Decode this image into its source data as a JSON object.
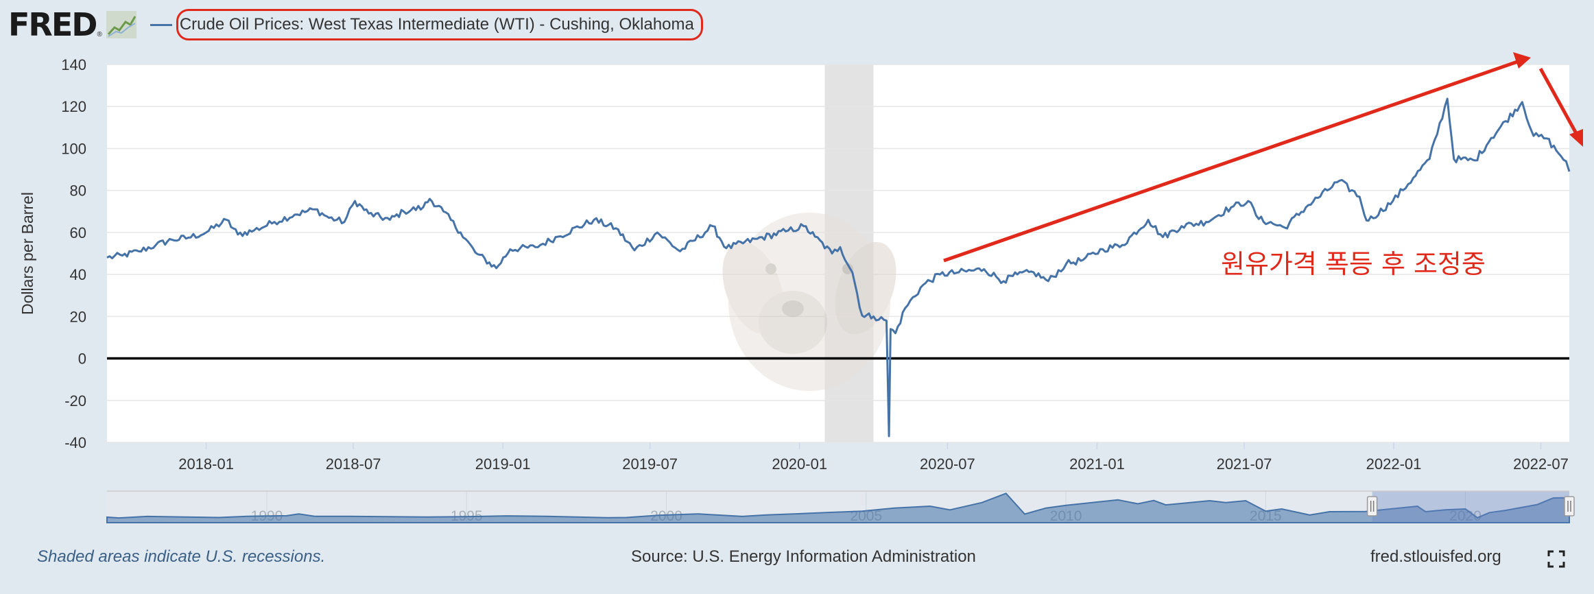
{
  "header": {
    "logo_text": "FRED",
    "logo_reg": "®",
    "series_title": "Crude Oil Prices: West Texas Intermediate (WTI) - Cushing, Oklahoma"
  },
  "chart_data": {
    "type": "line",
    "title": "Crude Oil Prices: West Texas Intermediate (WTI) - Cushing, Oklahoma",
    "xlabel": "",
    "ylabel": "Dollars per Barrel",
    "ylim": [
      -40,
      140
    ],
    "yticks": [
      140,
      120,
      100,
      80,
      60,
      40,
      20,
      0,
      -20,
      -40
    ],
    "xlim": [
      "2017-09-01",
      "2022-08-05"
    ],
    "xtick_labels": [
      "2018-01",
      "2018-07",
      "2019-01",
      "2019-07",
      "2020-01",
      "2020-07",
      "2021-01",
      "2021-07",
      "2022-01",
      "2022-07"
    ],
    "grid": true,
    "recession_shading": [
      [
        "2020-02",
        "2020-04"
      ]
    ],
    "series": [
      {
        "name": "Crude Oil Prices: West Texas Intermediate (WTI) - Cushing, Oklahoma",
        "color": "#4572a7",
        "points": [
          [
            "2017-09-01",
            48
          ],
          [
            "2017-09-20",
            49
          ],
          [
            "2017-10-10",
            51
          ],
          [
            "2017-10-31",
            54
          ],
          [
            "2017-11-20",
            56.5
          ],
          [
            "2017-12-10",
            57.5
          ],
          [
            "2018-01-01",
            60
          ],
          [
            "2018-01-26",
            66
          ],
          [
            "2018-02-09",
            59
          ],
          [
            "2018-03-01",
            61
          ],
          [
            "2018-03-26",
            65
          ],
          [
            "2018-04-20",
            68.5
          ],
          [
            "2018-05-15",
            71
          ],
          [
            "2018-06-01",
            67
          ],
          [
            "2018-06-20",
            65
          ],
          [
            "2018-07-03",
            75
          ],
          [
            "2018-07-20",
            69
          ],
          [
            "2018-08-15",
            66
          ],
          [
            "2018-09-01",
            70
          ],
          [
            "2018-09-25",
            72
          ],
          [
            "2018-10-03",
            76
          ],
          [
            "2018-10-20",
            70
          ],
          [
            "2018-11-10",
            60
          ],
          [
            "2018-11-28",
            50.5
          ],
          [
            "2018-12-24",
            43
          ],
          [
            "2019-01-10",
            52
          ],
          [
            "2019-02-10",
            53
          ],
          [
            "2019-03-10",
            58
          ],
          [
            "2019-04-23",
            66
          ],
          [
            "2019-05-20",
            62
          ],
          [
            "2019-06-12",
            51.5
          ],
          [
            "2019-07-10",
            60
          ],
          [
            "2019-08-07",
            51
          ],
          [
            "2019-09-16",
            63
          ],
          [
            "2019-10-03",
            52.5
          ],
          [
            "2019-11-10",
            57
          ],
          [
            "2019-12-15",
            60.5
          ],
          [
            "2020-01-06",
            63
          ],
          [
            "2020-01-20",
            58
          ],
          [
            "2020-02-10",
            50
          ],
          [
            "2020-02-20",
            53
          ],
          [
            "2020-03-06",
            41
          ],
          [
            "2020-03-18",
            20.4
          ],
          [
            "2020-04-01",
            20
          ],
          [
            "2020-04-17",
            18
          ],
          [
            "2020-04-20",
            -37
          ],
          [
            "2020-04-22",
            14
          ],
          [
            "2020-04-28",
            12
          ],
          [
            "2020-05-10",
            24
          ],
          [
            "2020-06-01",
            35
          ],
          [
            "2020-06-22",
            40
          ],
          [
            "2020-07-15",
            41
          ],
          [
            "2020-08-15",
            42.5
          ],
          [
            "2020-09-08",
            36.8
          ],
          [
            "2020-09-25",
            40
          ],
          [
            "2020-10-15",
            41
          ],
          [
            "2020-11-02",
            36.8
          ],
          [
            "2020-11-24",
            45
          ],
          [
            "2020-12-15",
            47
          ],
          [
            "2021-01-08",
            52
          ],
          [
            "2021-02-01",
            54
          ],
          [
            "2021-03-05",
            66
          ],
          [
            "2021-03-23",
            57.8
          ],
          [
            "2021-04-15",
            63
          ],
          [
            "2021-05-15",
            65
          ],
          [
            "2021-06-15",
            72
          ],
          [
            "2021-07-06",
            75
          ],
          [
            "2021-07-19",
            66.4
          ],
          [
            "2021-08-20",
            62.3
          ],
          [
            "2021-09-15",
            72
          ],
          [
            "2021-10-26",
            84.6
          ],
          [
            "2021-11-20",
            77
          ],
          [
            "2021-11-26",
            68.2
          ],
          [
            "2021-12-01",
            65.6
          ],
          [
            "2021-12-31",
            75
          ],
          [
            "2022-01-25",
            86
          ],
          [
            "2022-02-14",
            95
          ],
          [
            "2022-03-08",
            123.7
          ],
          [
            "2022-03-16",
            95
          ],
          [
            "2022-04-11",
            94.3
          ],
          [
            "2022-05-01",
            105
          ],
          [
            "2022-06-08",
            122.1
          ],
          [
            "2022-06-22",
            106
          ],
          [
            "2022-07-08",
            104.8
          ],
          [
            "2022-07-20",
            99
          ],
          [
            "2022-08-01",
            93.9
          ],
          [
            "2022-08-05",
            89
          ]
        ]
      }
    ],
    "navigator": {
      "tick_labels": [
        "1990",
        "1995",
        "2000",
        "2005",
        "2010",
        "2015",
        "2020"
      ],
      "range_years": [
        1986,
        2022.6
      ],
      "selected_range": [
        "2017-09",
        "2022-08"
      ],
      "series_years": [
        [
          1986,
          15
        ],
        [
          1986.3,
          11
        ],
        [
          1987,
          19
        ],
        [
          1988.8,
          13
        ],
        [
          1989.5,
          20
        ],
        [
          1990.5,
          23
        ],
        [
          1990.8,
          33
        ],
        [
          1991.2,
          20
        ],
        [
          1992,
          20
        ],
        [
          1993,
          18
        ],
        [
          1994,
          16
        ],
        [
          1995,
          18
        ],
        [
          1996,
          22
        ],
        [
          1997,
          20
        ],
        [
          1998.5,
          12
        ],
        [
          1999,
          13
        ],
        [
          1999.8,
          25
        ],
        [
          2000.8,
          33
        ],
        [
          2001.9,
          19
        ],
        [
          2002.5,
          27
        ],
        [
          2003.2,
          33
        ],
        [
          2004,
          40
        ],
        [
          2004.9,
          48
        ],
        [
          2005.7,
          65
        ],
        [
          2006.6,
          75
        ],
        [
          2007.1,
          55
        ],
        [
          2007.9,
          95
        ],
        [
          2008.5,
          145
        ],
        [
          2008.97,
          32
        ],
        [
          2009.5,
          65
        ],
        [
          2010,
          80
        ],
        [
          2011.3,
          110
        ],
        [
          2011.8,
          88
        ],
        [
          2012.2,
          106
        ],
        [
          2012.5,
          82
        ],
        [
          2013.6,
          105
        ],
        [
          2014,
          95
        ],
        [
          2014.5,
          105
        ],
        [
          2015,
          48
        ],
        [
          2015.4,
          60
        ],
        [
          2016.1,
          27
        ],
        [
          2016.6,
          45
        ],
        [
          2017.5,
          46
        ],
        [
          2018.8,
          75
        ],
        [
          2019,
          45
        ],
        [
          2019.5,
          55
        ],
        [
          2020,
          60
        ],
        [
          2020.3,
          12
        ],
        [
          2020.6,
          40
        ],
        [
          2021,
          52
        ],
        [
          2021.8,
          84
        ],
        [
          2022.2,
          120
        ],
        [
          2022.45,
          121
        ],
        [
          2022.6,
          90
        ]
      ]
    }
  },
  "annotation": {
    "text": "원유가격 폭등 후 조정중",
    "color": "#e0291b"
  },
  "footer": {
    "recession_note": "Shaded areas indicate U.S. recessions.",
    "source": "Source: U.S. Energy Information Administration",
    "site": "fred.stlouisfed.org"
  },
  "colors": {
    "background": "#e1e9f0",
    "series": "#4572a7",
    "recession": "#e3e3e3",
    "annotation": "#e0291b"
  },
  "icons": [
    "fred-logo-graph-icon",
    "legend-line-icon",
    "fullscreen-icon"
  ]
}
